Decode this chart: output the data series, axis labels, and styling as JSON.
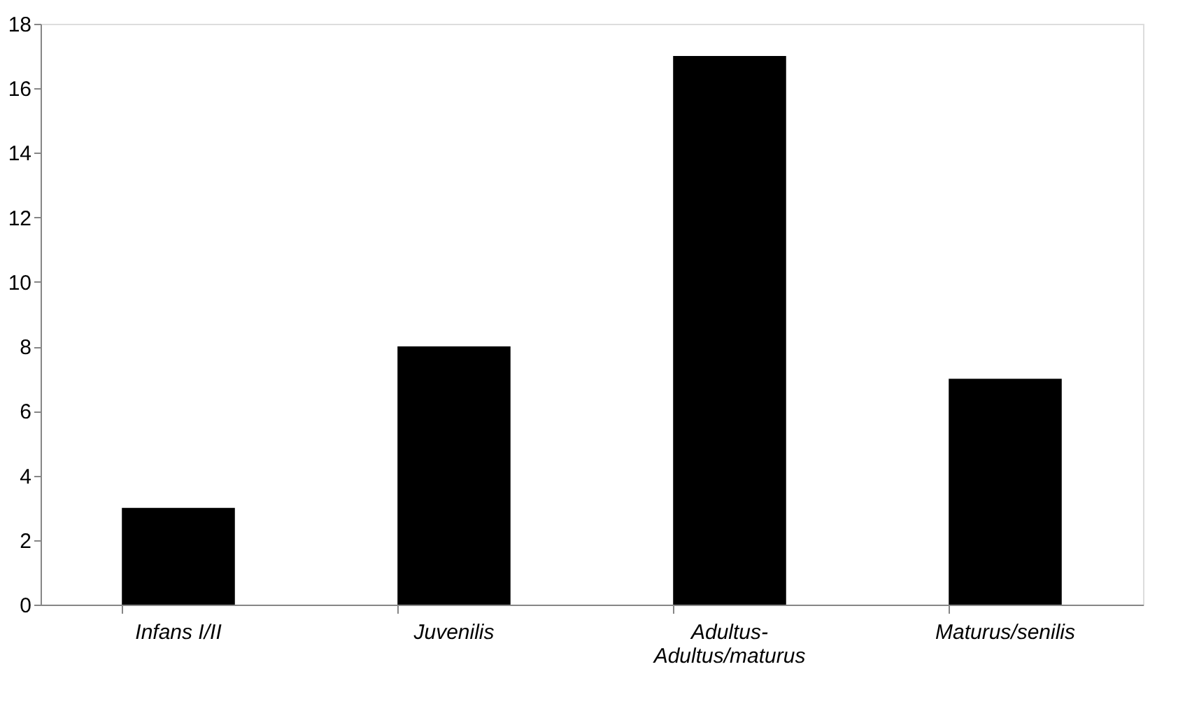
{
  "chart_data": {
    "type": "bar",
    "categories": [
      "Infans I/II",
      "Juvenilis",
      "Adultus-Adultus/maturus",
      "Maturus/senilis"
    ],
    "values": [
      3,
      8,
      17,
      7
    ],
    "color": "#000000",
    "ylim": [
      0,
      18
    ],
    "yticks": [
      0,
      2,
      4,
      6,
      8,
      10,
      12,
      14,
      16,
      18
    ],
    "grid": false
  }
}
